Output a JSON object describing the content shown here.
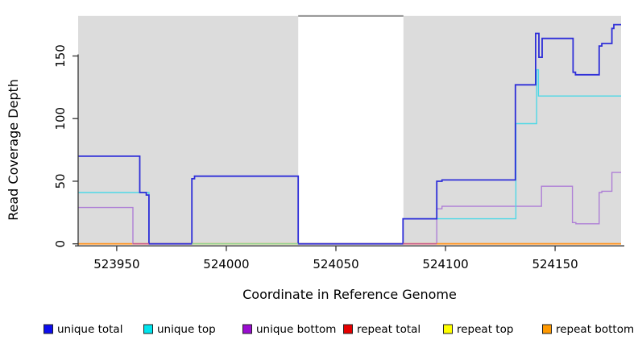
{
  "chart_data": {
    "type": "line",
    "step": true,
    "title": "",
    "xlabel": "Coordinate in Reference Genome",
    "ylabel": "Read Coverage Depth",
    "xlim": [
      523932.4,
      524180.1
    ],
    "ylim": [
      0,
      182
    ],
    "x_ticks": [
      523950,
      524000,
      524050,
      524100,
      524150
    ],
    "y_ticks": [
      0,
      50,
      100,
      150
    ],
    "grid": false,
    "legend_position": "bottom",
    "background_regions": [
      {
        "from": 523932.4,
        "to": 524032.8,
        "color": "#DCDCDC"
      },
      {
        "from": 524080.8,
        "to": 524180.1,
        "color": "#DCDCDC"
      }
    ],
    "gap_region": {
      "from": 524032.8,
      "to": 524080.8,
      "color": "#FFFFFF",
      "top_border_color": "#8A8A8A"
    },
    "series": [
      {
        "name": "unique total",
        "legend_color": "#0D0DEE",
        "line_color": "#2E2ED8",
        "width": 1.8,
        "points": [
          [
            523932.4,
            70
          ],
          [
            523960.5,
            70
          ],
          [
            523960.5,
            41
          ],
          [
            523963.5,
            41
          ],
          [
            523963.5,
            39
          ],
          [
            523964.7,
            39
          ],
          [
            523964.7,
            0
          ],
          [
            523984.3,
            0
          ],
          [
            523984.3,
            52
          ],
          [
            523985.5,
            52
          ],
          [
            523985.5,
            54
          ],
          [
            524032.8,
            54
          ],
          [
            524032.8,
            0
          ],
          [
            524080.6,
            0
          ],
          [
            524080.6,
            20
          ],
          [
            524096,
            20
          ],
          [
            524096,
            50
          ],
          [
            524098.4,
            50
          ],
          [
            524098.4,
            51
          ],
          [
            524131.9,
            51
          ],
          [
            524131.9,
            127
          ],
          [
            524141.1,
            127
          ],
          [
            524141.1,
            168
          ],
          [
            524142.6,
            168
          ],
          [
            524142.6,
            149
          ],
          [
            524144.1,
            149
          ],
          [
            524144.1,
            164
          ],
          [
            524158.2,
            164
          ],
          [
            524158.2,
            137
          ],
          [
            524159.3,
            137
          ],
          [
            524159.3,
            135
          ],
          [
            524170.1,
            135
          ],
          [
            524170.1,
            158
          ],
          [
            524171.3,
            158
          ],
          [
            524171.3,
            160
          ],
          [
            524175.9,
            160
          ],
          [
            524175.9,
            172
          ],
          [
            524176.8,
            172
          ],
          [
            524176.8,
            175
          ],
          [
            524180.1,
            175
          ]
        ]
      },
      {
        "name": "unique top",
        "legend_color": "#00E5EE",
        "line_color": "#4ED8E6",
        "width": 1.4,
        "points": [
          [
            523932.4,
            41
          ],
          [
            523964.7,
            41
          ],
          [
            523964.7,
            0
          ],
          [
            524080.6,
            0
          ],
          [
            524080.6,
            20
          ],
          [
            524132.1,
            20
          ],
          [
            524132.1,
            96
          ],
          [
            524141.6,
            96
          ],
          [
            524141.6,
            139
          ],
          [
            524142.4,
            139
          ],
          [
            524142.4,
            118
          ],
          [
            524180.1,
            118
          ]
        ]
      },
      {
        "name": "unique bottom",
        "legend_color": "#9A0DD0",
        "line_color": "#AE7FD6",
        "width": 1.4,
        "points": [
          [
            523932.4,
            29
          ],
          [
            523957.4,
            29
          ],
          [
            523957.4,
            0
          ],
          [
            524096,
            0
          ],
          [
            524096,
            28
          ],
          [
            524098.4,
            28
          ],
          [
            524098.4,
            30
          ],
          [
            524143.8,
            30
          ],
          [
            524143.8,
            46
          ],
          [
            524157.9,
            46
          ],
          [
            524157.9,
            17
          ],
          [
            524159.5,
            17
          ],
          [
            524159.5,
            16
          ],
          [
            524170.1,
            16
          ],
          [
            524170.1,
            41
          ],
          [
            524171.3,
            41
          ],
          [
            524171.3,
            42
          ],
          [
            524175.9,
            42
          ],
          [
            524175.9,
            57
          ],
          [
            524180.1,
            57
          ]
        ]
      },
      {
        "name": "repeat total",
        "legend_color": "#E60000",
        "line_color": "#E00000",
        "width": 1.2,
        "points": [
          [
            523932.4,
            0
          ],
          [
            524180.1,
            0
          ]
        ]
      },
      {
        "name": "repeat top",
        "legend_color": "#FFFF00",
        "line_color": "#FFEB00",
        "width": 1.2,
        "points": [
          [
            523932.4,
            0
          ],
          [
            524180.1,
            0
          ]
        ]
      },
      {
        "name": "repeat bottom",
        "legend_color": "#FF9900",
        "line_color": "#FF9420",
        "width": 1.8,
        "points": [
          [
            523932.4,
            0
          ],
          [
            524180.1,
            0
          ]
        ]
      }
    ],
    "zero_line_overlays": [
      {
        "from": 523957.4,
        "to": 523964.7,
        "color": "#C85A8C"
      },
      {
        "from": 523984.3,
        "to": 524032.8,
        "color": "#90D690"
      },
      {
        "from": 524080.6,
        "to": 524096.0,
        "color": "#C85A8C"
      },
      {
        "from": 524096.0,
        "to": 524180.1,
        "color": "#FF9420"
      }
    ]
  },
  "legend": {
    "items": [
      {
        "label": "unique total",
        "color": "#0D0DEE"
      },
      {
        "label": "unique top",
        "color": "#00E5EE"
      },
      {
        "label": "unique bottom",
        "color": "#9A0DD0"
      },
      {
        "label": "repeat total",
        "color": "#E60000"
      },
      {
        "label": "repeat top",
        "color": "#FFFF00"
      },
      {
        "label": "repeat bottom",
        "color": "#FF9900"
      }
    ]
  }
}
